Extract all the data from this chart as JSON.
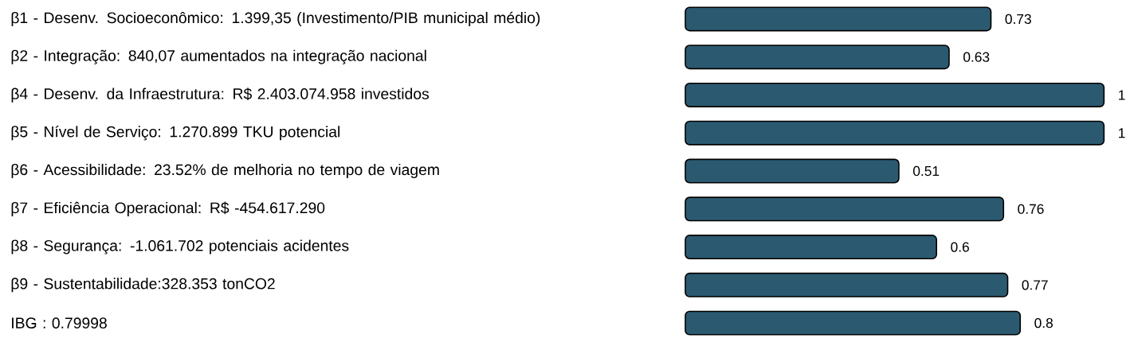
{
  "chart_data": {
    "type": "bar",
    "orientation": "horizontal",
    "data_labels": true,
    "color": "#2b5a70",
    "categories": [
      "β1 - Desenv. Socioeconômico:  1.399,35 (Investimento/PIB municipal médio)",
      "β2 - Integração: 840,07 aumentados na integração nacional",
      "β4 - Desenv. da Infraestrutura: R$ 2.403.074.958 investidos",
      "β5 - Nível de Serviço: 1.270.899 TKU potencial",
      "β6 - Acessibilidade: 23.52% de melhoria no tempo de viagem",
      "β7 - Eficiência Operacional: R$ -454.617.290",
      "β8 - Segurança: -1.061.702 potenciais acidentes",
      "β9 - Sustentabilidade:328.353 tonCO2",
      "IBG :     0.79998"
    ],
    "values": [
      0.73,
      0.63,
      1,
      1,
      0.51,
      0.76,
      0.6,
      0.77,
      0.8
    ]
  }
}
